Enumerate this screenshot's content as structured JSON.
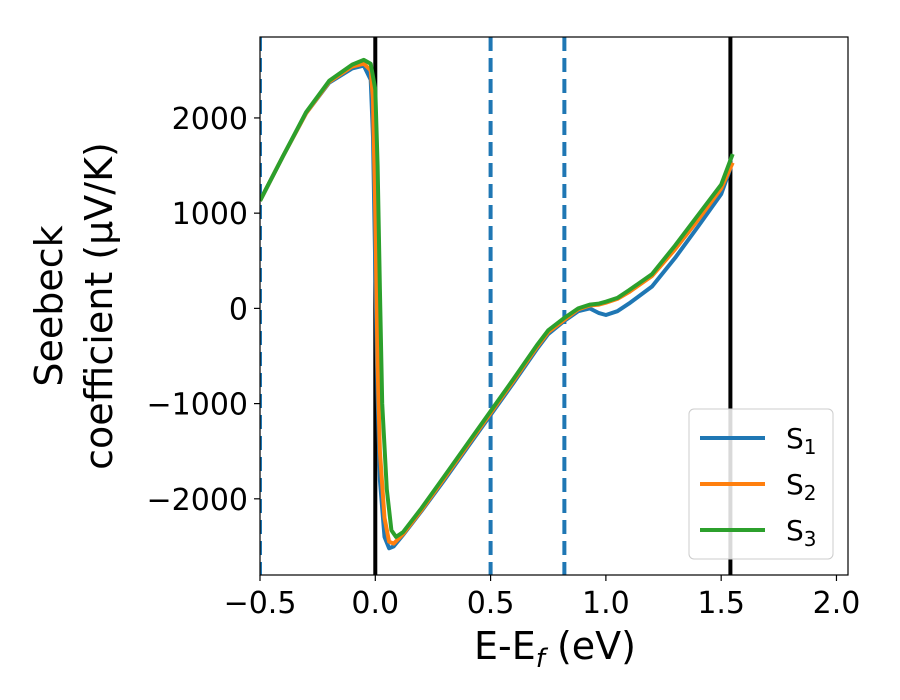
{
  "chart_data": {
    "type": "line",
    "xlabel": "E-E_f (eV)",
    "ylabel_lines": [
      "Seebeck",
      "coefficient  (μV/K)"
    ],
    "xlim": [
      -0.5,
      2.05
    ],
    "ylim": [
      -2800,
      2850
    ],
    "xticks": [
      -0.5,
      0.0,
      0.5,
      1.0,
      1.5,
      2.0
    ],
    "xtick_labels": [
      "−0.5",
      "0.0",
      "0.5",
      "1.0",
      "1.5",
      "2.0"
    ],
    "yticks": [
      -2000,
      -1000,
      0,
      1000,
      2000
    ],
    "ytick_labels": [
      "−2000",
      "−1000",
      "0",
      "1000",
      "2000"
    ],
    "grid": false,
    "legend_position": "lower-right",
    "vlines": [
      {
        "x": -0.5,
        "style": "dashed",
        "color": "#1f77b4"
      },
      {
        "x": 0.0,
        "style": "solid",
        "color": "#000000"
      },
      {
        "x": 0.5,
        "style": "dashed",
        "color": "#1f77b4"
      },
      {
        "x": 0.82,
        "style": "dashed",
        "color": "#1f77b4"
      },
      {
        "x": 1.54,
        "style": "solid",
        "color": "#000000"
      }
    ],
    "series": [
      {
        "name": "S1",
        "name_base": "S",
        "name_sub": "1",
        "color": "#1f77b4",
        "points": [
          [
            -0.5,
            1130
          ],
          [
            -0.4,
            1600
          ],
          [
            -0.3,
            2050
          ],
          [
            -0.2,
            2370
          ],
          [
            -0.1,
            2520
          ],
          [
            -0.05,
            2550
          ],
          [
            -0.02,
            2400
          ],
          [
            -0.01,
            1800
          ],
          [
            0.0,
            400
          ],
          [
            0.01,
            -900
          ],
          [
            0.02,
            -1800
          ],
          [
            0.04,
            -2400
          ],
          [
            0.06,
            -2520
          ],
          [
            0.08,
            -2500
          ],
          [
            0.12,
            -2380
          ],
          [
            0.2,
            -2130
          ],
          [
            0.3,
            -1800
          ],
          [
            0.4,
            -1460
          ],
          [
            0.5,
            -1120
          ],
          [
            0.6,
            -780
          ],
          [
            0.7,
            -430
          ],
          [
            0.75,
            -270
          ],
          [
            0.82,
            -130
          ],
          [
            0.88,
            -30
          ],
          [
            0.93,
            0
          ],
          [
            0.97,
            -50
          ],
          [
            1.0,
            -70
          ],
          [
            1.05,
            -30
          ],
          [
            1.1,
            50
          ],
          [
            1.2,
            230
          ],
          [
            1.3,
            530
          ],
          [
            1.4,
            860
          ],
          [
            1.5,
            1200
          ],
          [
            1.54,
            1470
          ]
        ]
      },
      {
        "name": "S2",
        "name_base": "S",
        "name_sub": "2",
        "color": "#ff7f0e",
        "points": [
          [
            -0.5,
            1130
          ],
          [
            -0.4,
            1600
          ],
          [
            -0.3,
            2050
          ],
          [
            -0.2,
            2380
          ],
          [
            -0.1,
            2540
          ],
          [
            -0.05,
            2570
          ],
          [
            -0.02,
            2500
          ],
          [
            -0.01,
            2200
          ],
          [
            0.0,
            1000
          ],
          [
            0.01,
            -600
          ],
          [
            0.02,
            -1500
          ],
          [
            0.04,
            -2200
          ],
          [
            0.06,
            -2450
          ],
          [
            0.08,
            -2470
          ],
          [
            0.12,
            -2370
          ],
          [
            0.2,
            -2120
          ],
          [
            0.3,
            -1780
          ],
          [
            0.4,
            -1440
          ],
          [
            0.5,
            -1100
          ],
          [
            0.6,
            -760
          ],
          [
            0.7,
            -410
          ],
          [
            0.75,
            -250
          ],
          [
            0.82,
            -120
          ],
          [
            0.88,
            -10
          ],
          [
            0.93,
            30
          ],
          [
            0.97,
            40
          ],
          [
            1.0,
            60
          ],
          [
            1.05,
            100
          ],
          [
            1.1,
            170
          ],
          [
            1.2,
            340
          ],
          [
            1.3,
            620
          ],
          [
            1.4,
            930
          ],
          [
            1.5,
            1260
          ],
          [
            1.55,
            1530
          ]
        ]
      },
      {
        "name": "S3",
        "name_base": "S",
        "name_sub": "3",
        "color": "#2ca02c",
        "points": [
          [
            -0.5,
            1130
          ],
          [
            -0.4,
            1600
          ],
          [
            -0.3,
            2060
          ],
          [
            -0.2,
            2390
          ],
          [
            -0.1,
            2560
          ],
          [
            -0.05,
            2610
          ],
          [
            -0.02,
            2570
          ],
          [
            0.0,
            2300
          ],
          [
            0.01,
            1500
          ],
          [
            0.02,
            200
          ],
          [
            0.03,
            -1000
          ],
          [
            0.05,
            -1900
          ],
          [
            0.07,
            -2330
          ],
          [
            0.09,
            -2400
          ],
          [
            0.12,
            -2350
          ],
          [
            0.2,
            -2100
          ],
          [
            0.3,
            -1760
          ],
          [
            0.4,
            -1420
          ],
          [
            0.5,
            -1080
          ],
          [
            0.6,
            -740
          ],
          [
            0.7,
            -390
          ],
          [
            0.75,
            -230
          ],
          [
            0.82,
            -100
          ],
          [
            0.88,
            0
          ],
          [
            0.93,
            40
          ],
          [
            0.97,
            50
          ],
          [
            1.0,
            70
          ],
          [
            1.05,
            110
          ],
          [
            1.1,
            190
          ],
          [
            1.2,
            360
          ],
          [
            1.3,
            660
          ],
          [
            1.4,
            980
          ],
          [
            1.5,
            1300
          ],
          [
            1.55,
            1620
          ]
        ]
      }
    ]
  }
}
